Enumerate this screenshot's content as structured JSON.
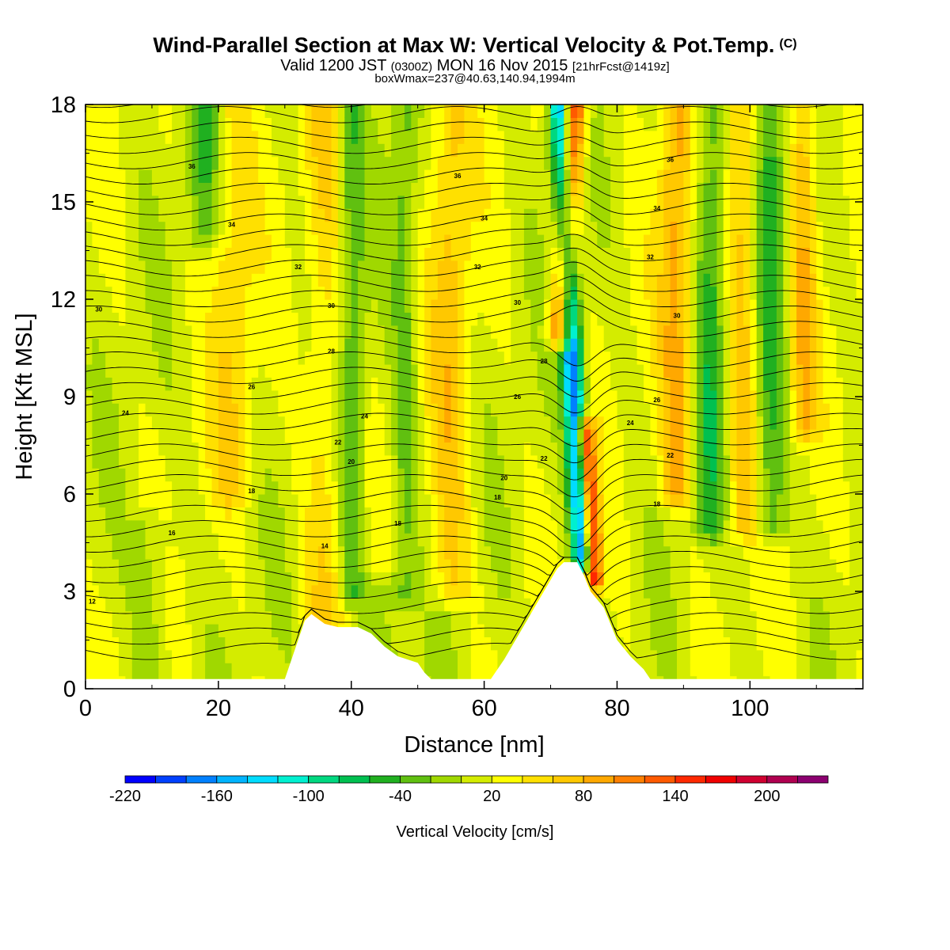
{
  "header": {
    "title": "Wind-Parallel Section at Max W: Vertical Velocity & Pot.Temp.",
    "copyright": "(C)",
    "valid_prefix": "Valid 1200 JST",
    "valid_utc": "(0300Z)",
    "valid_date": "MON 16 Nov 2015",
    "forecast": "[21hrFcst@1419z]",
    "boxwmax": "boxWmax=237@40.63,140.94,1994m"
  },
  "chart_data": {
    "type": "heatmap",
    "xlabel": "Distance [nm]",
    "ylabel": "Height [Kft MSL]",
    "xlim": [
      0,
      117
    ],
    "ylim": [
      0,
      18
    ],
    "xticks": [
      0,
      20,
      40,
      60,
      80,
      100
    ],
    "yticks": [
      0,
      3,
      6,
      9,
      12,
      15,
      18
    ],
    "grid": false,
    "colorbar": {
      "title": "Vertical Velocity [cm/s]",
      "tick_labels": [
        "-220",
        "-160",
        "-100",
        "-40",
        "20",
        "80",
        "140",
        "200"
      ],
      "tick_values": [
        -220,
        -160,
        -100,
        -40,
        20,
        80,
        140,
        200
      ],
      "bin_edges": [
        -220,
        -200,
        -180,
        -160,
        -140,
        -120,
        -100,
        -80,
        -60,
        -40,
        -20,
        0,
        20,
        40,
        60,
        80,
        100,
        120,
        140,
        160,
        180,
        200,
        220,
        240
      ],
      "colors": [
        "#0000ff",
        "#0040ff",
        "#0080ff",
        "#00b4ff",
        "#00dcff",
        "#00f0d0",
        "#00d880",
        "#00c050",
        "#20b020",
        "#60c010",
        "#a0d800",
        "#d4ec00",
        "#ffff00",
        "#ffe000",
        "#ffc800",
        "#ffa800",
        "#ff8000",
        "#ff5a00",
        "#ff2800",
        "#f00000",
        "#d00030",
        "#b00050",
        "#8c0070",
        "#640090"
      ]
    },
    "terrain": [
      [
        0,
        0.3
      ],
      [
        30,
        0.3
      ],
      [
        31,
        0.9
      ],
      [
        32,
        1.5
      ],
      [
        33,
        2.1
      ],
      [
        34,
        2.3
      ],
      [
        36,
        2.0
      ],
      [
        38,
        1.9
      ],
      [
        41,
        1.9
      ],
      [
        43,
        1.7
      ],
      [
        45,
        1.3
      ],
      [
        47,
        1.0
      ],
      [
        50,
        0.8
      ],
      [
        51,
        0.5
      ],
      [
        52,
        0.3
      ],
      [
        61,
        0.3
      ],
      [
        63,
        0.9
      ],
      [
        65,
        1.6
      ],
      [
        67,
        2.3
      ],
      [
        69,
        3.0
      ],
      [
        71,
        3.7
      ],
      [
        72,
        3.9
      ],
      [
        74,
        3.9
      ],
      [
        75,
        3.5
      ],
      [
        76,
        3.0
      ],
      [
        78,
        2.5
      ],
      [
        80,
        1.5
      ],
      [
        82,
        1.0
      ],
      [
        84,
        0.6
      ],
      [
        85,
        0.3
      ],
      [
        117,
        0.3
      ]
    ],
    "w_features": [
      {
        "x": 71.5,
        "y0": 11,
        "y1": 18,
        "slope": 0.3,
        "width": 1.8,
        "w": 150
      },
      {
        "x": 74.8,
        "y0": 4,
        "y1": 18,
        "slope": -0.25,
        "width": 1.6,
        "w": -190
      },
      {
        "x": 76.5,
        "y0": 3.5,
        "y1": 8,
        "slope": -0.3,
        "width": 1.3,
        "w": 170
      },
      {
        "x": 36,
        "y0": 2,
        "y1": 18,
        "slope": 0,
        "width": 3,
        "w": 40
      },
      {
        "x": 40,
        "y0": 3,
        "y1": 18,
        "slope": 0,
        "width": 2,
        "w": -50
      },
      {
        "x": 18,
        "y0": 14,
        "y1": 18,
        "slope": 0,
        "width": 2.5,
        "w": -50
      },
      {
        "x": 22,
        "y0": 6,
        "y1": 18,
        "slope": 0,
        "width": 3,
        "w": 40
      },
      {
        "x": 48,
        "y0": 3,
        "y1": 18,
        "slope": 0,
        "width": 2,
        "w": -40
      },
      {
        "x": 55,
        "y0": 3,
        "y1": 18,
        "slope": 0,
        "width": 3,
        "w": 50
      },
      {
        "x": 89,
        "y0": 6,
        "y1": 18,
        "slope": 0,
        "width": 2.5,
        "w": 70
      },
      {
        "x": 94,
        "y0": 5,
        "y1": 18,
        "slope": 0,
        "width": 2.5,
        "w": -60
      },
      {
        "x": 99,
        "y0": 5,
        "y1": 18,
        "slope": 0,
        "width": 2.5,
        "w": 60
      },
      {
        "x": 103,
        "y0": 5,
        "y1": 18,
        "slope": 0,
        "width": 2.5,
        "w": -60
      },
      {
        "x": 108,
        "y0": 8,
        "y1": 18,
        "slope": 0,
        "width": 2,
        "w": 60
      },
      {
        "x": 10,
        "y0": 0.3,
        "y1": 5,
        "slope": 0,
        "width": 3,
        "w": -30
      },
      {
        "x": 45,
        "y0": 0.5,
        "y1": 3,
        "slope": 0,
        "width": 4,
        "w": -30
      }
    ],
    "contour_levels": [
      12,
      14,
      16,
      18,
      20,
      22,
      24,
      26,
      28,
      30,
      32,
      34,
      36
    ],
    "contour_labels": [
      {
        "text": "12",
        "x": 1,
        "y": 2.7
      },
      {
        "text": "14",
        "x": 36,
        "y": 4.4
      },
      {
        "text": "16",
        "x": 13,
        "y": 4.8
      },
      {
        "text": "18",
        "x": 25,
        "y": 6.1
      },
      {
        "text": "18",
        "x": 47,
        "y": 5.1
      },
      {
        "text": "18",
        "x": 62,
        "y": 5.9
      },
      {
        "text": "18",
        "x": 86,
        "y": 5.7
      },
      {
        "text": "20",
        "x": 40,
        "y": 7.0
      },
      {
        "text": "20",
        "x": 63,
        "y": 6.5
      },
      {
        "text": "22",
        "x": 38,
        "y": 7.6
      },
      {
        "text": "22",
        "x": 69,
        "y": 7.1
      },
      {
        "text": "22",
        "x": 88,
        "y": 7.2
      },
      {
        "text": "24",
        "x": 6,
        "y": 8.5
      },
      {
        "text": "24",
        "x": 42,
        "y": 8.4
      },
      {
        "text": "24",
        "x": 82,
        "y": 8.2
      },
      {
        "text": "26",
        "x": 25,
        "y": 9.3
      },
      {
        "text": "26",
        "x": 65,
        "y": 9.0
      },
      {
        "text": "26",
        "x": 86,
        "y": 8.9
      },
      {
        "text": "28",
        "x": 37,
        "y": 10.4
      },
      {
        "text": "28",
        "x": 69,
        "y": 10.1
      },
      {
        "text": "30",
        "x": 2,
        "y": 11.7
      },
      {
        "text": "30",
        "x": 37,
        "y": 11.8
      },
      {
        "text": "30",
        "x": 65,
        "y": 11.9
      },
      {
        "text": "30",
        "x": 89,
        "y": 11.5
      },
      {
        "text": "32",
        "x": 32,
        "y": 13.0
      },
      {
        "text": "32",
        "x": 59,
        "y": 13.0
      },
      {
        "text": "32",
        "x": 85,
        "y": 13.3
      },
      {
        "text": "34",
        "x": 22,
        "y": 14.3
      },
      {
        "text": "34",
        "x": 60,
        "y": 14.5
      },
      {
        "text": "34",
        "x": 86,
        "y": 14.8
      },
      {
        "text": "36",
        "x": 16,
        "y": 16.1
      },
      {
        "text": "36",
        "x": 56,
        "y": 15.8
      },
      {
        "text": "36",
        "x": 88,
        "y": 16.3
      }
    ]
  }
}
